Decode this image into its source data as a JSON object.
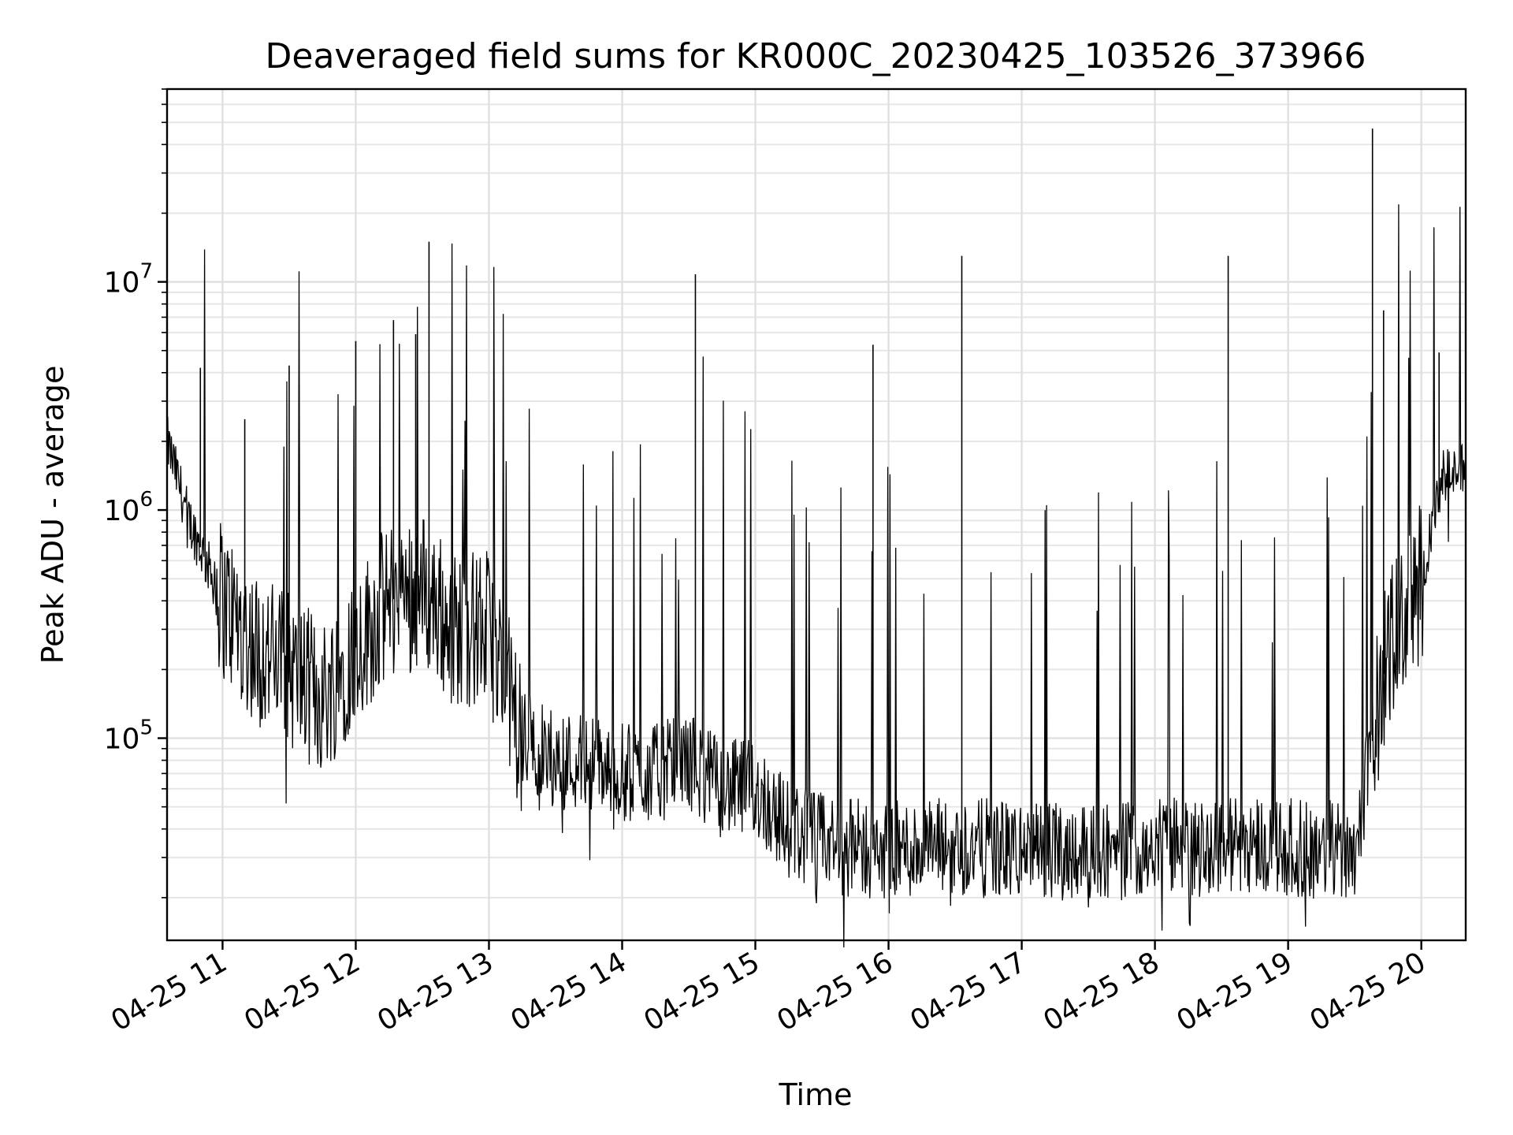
{
  "chart_data": {
    "type": "line",
    "title": "Deaveraged field sums for KR000C_20230425_103526_373966",
    "xlabel": "Time",
    "ylabel": "Peak ADU - average",
    "yscale": "log",
    "ylim": [
      13000,
      70000000
    ],
    "xlim": [
      "04-25 10:35",
      "04-25 20:20"
    ],
    "grid": true,
    "line_color": "#000000",
    "x_ticks": [
      "04-25 11",
      "04-25 12",
      "04-25 13",
      "04-25 14",
      "04-25 15",
      "04-25 16",
      "04-25 17",
      "04-25 18",
      "04-25 19",
      "04-25 20"
    ],
    "y_ticks": [
      {
        "base": "10",
        "exp": "5",
        "value": 100000
      },
      {
        "base": "10",
        "exp": "6",
        "value": 1000000
      },
      {
        "base": "10",
        "exp": "7",
        "value": 10000000
      }
    ],
    "series": [
      {
        "x": [
          "04-25 10:35",
          "04-25 10:45",
          "04-25 11:00",
          "04-25 11:15",
          "04-25 11:30",
          "04-25 11:45",
          "04-25 12:00",
          "04-25 12:15",
          "04-25 12:30",
          "04-25 12:45",
          "04-25 13:00",
          "04-25 13:15",
          "04-25 13:30",
          "04-25 13:45",
          "04-25 14:00",
          "04-25 14:15",
          "04-25 14:30",
          "04-25 14:45",
          "04-25 15:00",
          "04-25 15:15",
          "04-25 15:30",
          "04-25 15:45",
          "04-25 16:00",
          "04-25 16:15",
          "04-25 16:30",
          "04-25 16:45",
          "04-25 17:00",
          "04-25 17:15",
          "04-25 17:30",
          "04-25 17:45",
          "04-25 18:00",
          "04-25 18:15",
          "04-25 18:30",
          "04-25 18:45",
          "04-25 19:00",
          "04-25 19:15",
          "04-25 19:30",
          "04-25 19:45",
          "04-25 20:00",
          "04-25 20:10",
          "04-25 20:20"
        ],
        "values": [
          2000000,
          900000,
          400000,
          250000,
          200000,
          150000,
          250000,
          400000,
          450000,
          300000,
          300000,
          100000,
          80000,
          80000,
          70000,
          70000,
          80000,
          60000,
          60000,
          40000,
          35000,
          33000,
          32000,
          33000,
          33000,
          33000,
          32000,
          32000,
          33000,
          32000,
          35000,
          33000,
          34000,
          35000,
          33000,
          32000,
          33000,
          250000,
          500000,
          1400000,
          1500000
        ]
      }
    ],
    "spikes": [
      {
        "x": "04-25 10:50",
        "value": 4200000
      },
      {
        "x": "04-25 11:10",
        "value": 2500000
      },
      {
        "x": "04-25 11:30",
        "value": 4300000
      },
      {
        "x": "04-25 12:00",
        "value": 5500000
      },
      {
        "x": "04-25 12:17",
        "value": 6800000
      },
      {
        "x": "04-25 12:27",
        "value": 5900000
      },
      {
        "x": "04-25 12:33",
        "value": 15000000
      },
      {
        "x": "04-25 14:33",
        "value": 10800000
      },
      {
        "x": "04-25 15:53",
        "value": 5300000
      },
      {
        "x": "04-25 16:33",
        "value": 13000000
      },
      {
        "x": "04-25 18:33",
        "value": 13000000
      },
      {
        "x": "04-25 19:38",
        "value": 47000000
      },
      {
        "x": "04-25 19:43",
        "value": 7500000
      },
      {
        "x": "04-25 20:08",
        "value": 4900000
      },
      {
        "x": "04-25 20:20",
        "value": 6000000
      }
    ]
  }
}
